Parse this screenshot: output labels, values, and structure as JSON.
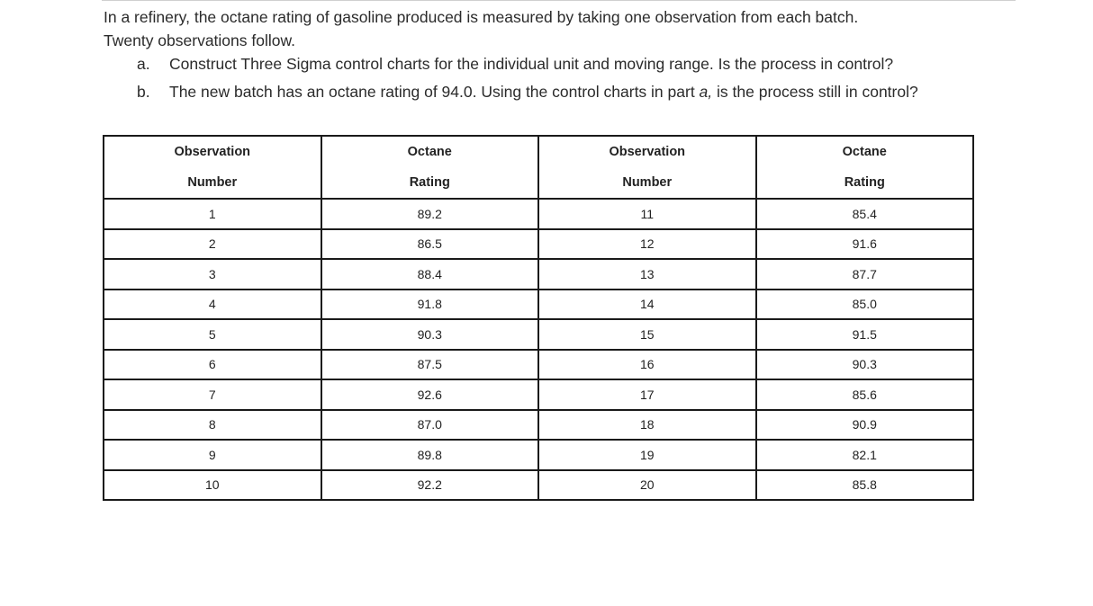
{
  "problem": {
    "intro_line1": "In a refinery, the octane rating of gasoline produced is measured by taking one observation from each batch.",
    "intro_line2": "Twenty observations follow.",
    "question_a_letter": "a.",
    "question_a_text": "Construct Three Sigma control charts for the individual unit and moving range. Is the process in control?",
    "question_b_letter": "b.",
    "question_b_text_pre": "The new batch has an octane rating of 94.0. Using the control charts in part ",
    "question_b_text_italic": "a,",
    "question_b_text_post": " is the process still in control?"
  },
  "table": {
    "headers": [
      {
        "line1": "Observation",
        "line2": "Number"
      },
      {
        "line1": "Octane",
        "line2": "Rating"
      },
      {
        "line1": "Observation",
        "line2": "Number"
      },
      {
        "line1": "Octane",
        "line2": "Rating"
      }
    ],
    "rows": [
      [
        "1",
        "89.2",
        "11",
        "85.4"
      ],
      [
        "2",
        "86.5",
        "12",
        "91.6"
      ],
      [
        "3",
        "88.4",
        "13",
        "87.7"
      ],
      [
        "4",
        "91.8",
        "14",
        "85.0"
      ],
      [
        "5",
        "90.3",
        "15",
        "91.5"
      ],
      [
        "6",
        "87.5",
        "16",
        "90.3"
      ],
      [
        "7",
        "92.6",
        "17",
        "85.6"
      ],
      [
        "8",
        "87.0",
        "18",
        "90.9"
      ],
      [
        "9",
        "89.8",
        "19",
        "82.1"
      ],
      [
        "10",
        "92.2",
        "20",
        "85.8"
      ]
    ]
  }
}
